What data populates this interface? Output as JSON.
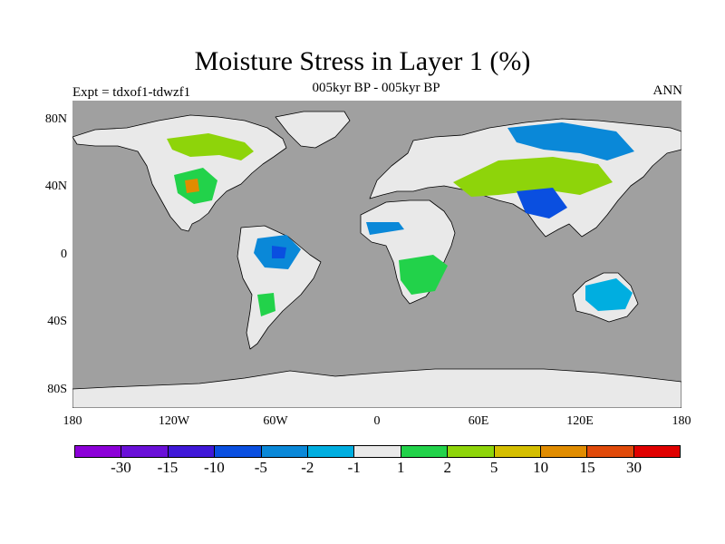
{
  "figure": {
    "title": "Moisture Stress in Layer 1 (%)",
    "subtitle": "005kyr BP - 005kyr BP",
    "experiment": "Expt = tdxof1-tdwzf1",
    "season": "ANN"
  },
  "axes": {
    "lat_labels": [
      "80N",
      "40N",
      "0",
      "40S",
      "80S"
    ],
    "lon_labels": [
      "180",
      "120W",
      "60W",
      "0",
      "60E",
      "120E",
      "180"
    ]
  },
  "colors": {
    "ocean": "#a0a0a0",
    "land_neutral": "#e9e9e9",
    "coast": "#000000"
  },
  "legend": {
    "colors": [
      "#8c00d8",
      "#6a10d8",
      "#3f18d8",
      "#0a4fe0",
      "#0a88d8",
      "#00aee0",
      "#e9e9e9",
      "#22d24a",
      "#8ed40a",
      "#d4be00",
      "#e08c00",
      "#e04a0a",
      "#e00000"
    ],
    "labels": [
      "-30",
      "-15",
      "-10",
      "-5",
      "-2",
      "-1",
      "1",
      "2",
      "5",
      "10",
      "15",
      "30"
    ]
  }
}
